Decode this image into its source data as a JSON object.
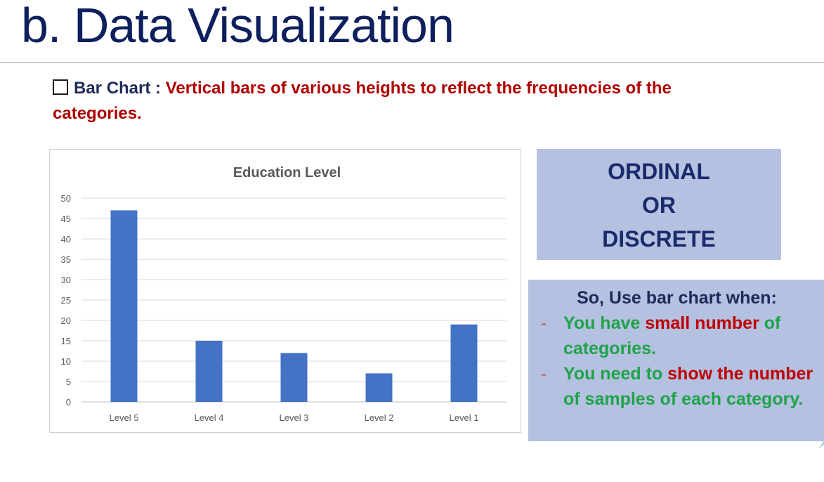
{
  "slide": {
    "title": "b. Data Visualization",
    "bullet_lead": "Bar Chart : ",
    "bullet_text": "Vertical bars of various heights to reflect the frequencies of the categories."
  },
  "ordinal_box": {
    "line1": "ORDINAL",
    "line2": "OR",
    "line3": "DISCRETE"
  },
  "note": {
    "heading": "So, Use bar chart when:",
    "dash": "-",
    "item1": {
      "p1": "You have ",
      "p2": "small number",
      "p3": " of categories."
    },
    "item2": {
      "p1": "You need to ",
      "p2": "show the number",
      "p3": " of samples of each category."
    }
  },
  "colors": {
    "bar": "#4472c4",
    "title": "#0d1f5c",
    "red": "#c00000",
    "green": "#1fa34a",
    "box": "#b4c1e0"
  },
  "chart_data": {
    "type": "bar",
    "title": "Education Level",
    "categories": [
      "Level 5",
      "Level 4",
      "Level 3",
      "Level 2",
      "Level 1"
    ],
    "values": [
      47,
      15,
      12,
      7,
      19
    ],
    "ylim": [
      0,
      50
    ],
    "yticks": [
      0,
      5,
      10,
      15,
      20,
      25,
      30,
      35,
      40,
      45,
      50
    ],
    "grid": true,
    "xlabel": "",
    "ylabel": ""
  }
}
